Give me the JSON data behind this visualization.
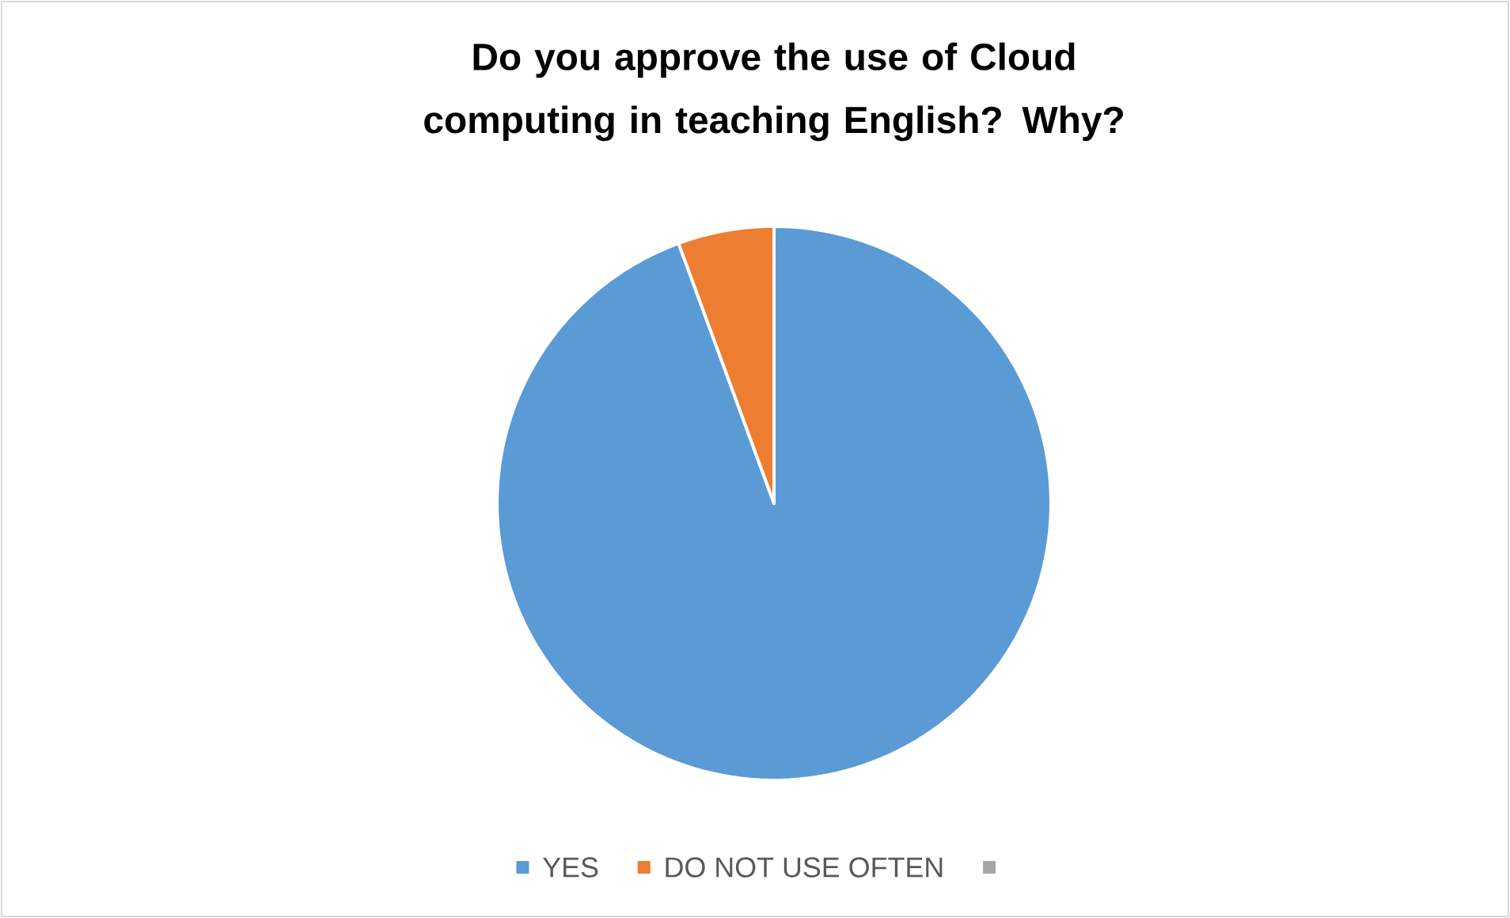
{
  "chart_data": {
    "type": "pie",
    "title": "Do you approve the use of Cloud computing in teaching English? Why?",
    "categories": [
      "YES",
      "DO NOT USE OFTEN",
      null
    ],
    "values": [
      94.4,
      5.6,
      0
    ],
    "colors": [
      "#5b9bd5",
      "#ed7d31",
      "#a5a5a5"
    ],
    "legend": "bottom"
  }
}
